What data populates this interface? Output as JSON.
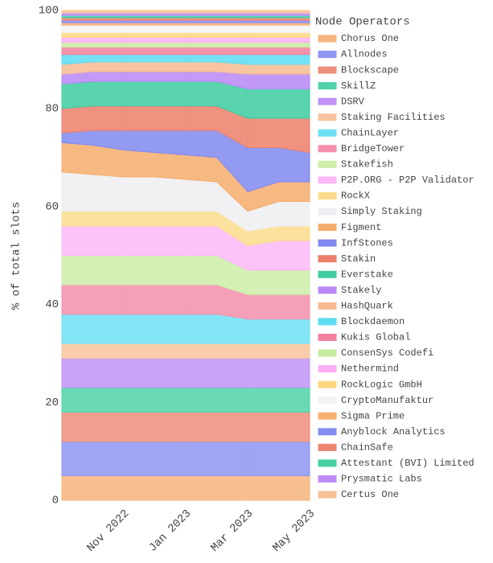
{
  "chart_data": {
    "type": "stacked_area",
    "legend_title": "Node Operators",
    "y_label": "% of total slots",
    "x": [
      "Sep 2022",
      "Oct 2022",
      "Nov 2022",
      "Dec 2022",
      "Jan 2023",
      "Feb 2023",
      "Mar 2023",
      "Apr 2023",
      "May 2023"
    ],
    "xticks": [
      "Nov 2022",
      "Jan 2023",
      "Mar 2023",
      "May 2023"
    ],
    "ylim": [
      0,
      100
    ],
    "yticks": [
      0,
      20,
      40,
      60,
      80,
      100
    ],
    "grid": true,
    "legend": "right",
    "series": [
      {
        "name": "Chorus One",
        "color": "#f7b47c",
        "values": [
          5,
          5,
          5,
          5,
          5,
          5,
          5,
          5,
          5
        ]
      },
      {
        "name": "Allnodes",
        "color": "#8e95f2",
        "values": [
          7,
          7,
          7,
          7,
          7,
          7,
          7,
          7,
          7
        ]
      },
      {
        "name": "Blockscape",
        "color": "#ee8e7c",
        "values": [
          6,
          6,
          6,
          6,
          6,
          6,
          6,
          6,
          6
        ]
      },
      {
        "name": "SkillZ",
        "color": "#4fd2a9",
        "values": [
          5,
          5,
          5,
          5,
          5,
          5,
          5,
          5,
          5
        ]
      },
      {
        "name": "DSRV",
        "color": "#c194f7",
        "values": [
          6,
          6,
          6,
          6,
          6,
          6,
          6,
          6,
          6
        ]
      },
      {
        "name": "Staking Facilities",
        "color": "#f8c49e",
        "values": [
          3,
          3,
          3,
          3,
          3,
          3,
          3,
          3,
          3
        ]
      },
      {
        "name": "ChainLayer",
        "color": "#6fe0f4",
        "values": [
          6,
          6,
          6,
          6,
          6,
          6,
          5,
          5,
          5
        ]
      },
      {
        "name": "BridgeTower",
        "color": "#f58fab",
        "values": [
          6,
          6,
          6,
          6,
          6,
          6,
          5,
          5,
          5
        ]
      },
      {
        "name": "Stakefish",
        "color": "#cdeda8",
        "values": [
          6,
          6,
          6,
          6,
          6,
          6,
          5,
          5,
          5
        ]
      },
      {
        "name": "P2P.ORG - P2P Validator",
        "color": "#fcb8f7",
        "values": [
          6,
          6,
          6,
          6,
          6,
          6,
          5,
          6,
          6
        ]
      },
      {
        "name": "RockX",
        "color": "#fcdc8c",
        "values": [
          3,
          3,
          3,
          3,
          3,
          3,
          3,
          3,
          3
        ]
      },
      {
        "name": "Simply Staking",
        "color": "#eeeff2",
        "values": [
          8,
          7.5,
          7,
          7,
          6.5,
          6,
          4,
          5,
          5
        ]
      },
      {
        "name": "Figment",
        "color": "#f6ad6c",
        "values": [
          6,
          6,
          5.5,
          5,
          5,
          5,
          4,
          4,
          4
        ]
      },
      {
        "name": "InfStones",
        "color": "#8088f0",
        "values": [
          2,
          3,
          4,
          4.5,
          5,
          5.5,
          9,
          7,
          6
        ]
      },
      {
        "name": "Stakin",
        "color": "#ec7f6a",
        "values": [
          5,
          5,
          5,
          5,
          5,
          5,
          6,
          6,
          7
        ]
      },
      {
        "name": "Everstake",
        "color": "#3dcca0",
        "values": [
          5,
          5,
          5,
          5,
          5,
          5,
          6,
          6,
          6
        ]
      },
      {
        "name": "Stakely",
        "color": "#b987f6",
        "values": [
          2,
          2,
          2,
          2,
          2,
          2,
          3,
          3,
          3
        ]
      },
      {
        "name": "HashQuark",
        "color": "#f7bb92",
        "values": [
          2,
          2,
          2,
          2,
          2,
          2,
          2,
          2,
          2
        ]
      },
      {
        "name": "Blockdaemon",
        "color": "#5cdcf2",
        "values": [
          2,
          1.5,
          1.5,
          1.5,
          1.5,
          1.5,
          2,
          2,
          2
        ]
      },
      {
        "name": "Kukis Global",
        "color": "#f3809f",
        "values": [
          1.5,
          1.5,
          1.5,
          1.5,
          1.5,
          1.5,
          1.5,
          1.5,
          1.5
        ]
      },
      {
        "name": "ConsenSys Codefi",
        "color": "#c7eb9f",
        "values": [
          1,
          1,
          1,
          1,
          1,
          1,
          1,
          1,
          1
        ]
      },
      {
        "name": "Nethermind",
        "color": "#fcaff6",
        "values": [
          1,
          1,
          1,
          1,
          1,
          1,
          1,
          1,
          1
        ]
      },
      {
        "name": "RockLogic GmbH",
        "color": "#fcd780",
        "values": [
          1,
          1,
          1,
          1,
          1,
          1,
          1,
          1,
          1
        ]
      },
      {
        "name": "CryptoManufaktur",
        "color": "#f3f3f5",
        "values": [
          1.5,
          1.5,
          1.5,
          1.5,
          1.5,
          1.5,
          1.5,
          1.5,
          1.5
        ]
      },
      {
        "name": "Sigma Prime",
        "color": "#f7b070",
        "values": [
          0.5,
          0.5,
          0.5,
          0.5,
          0.5,
          0.5,
          0.5,
          0.5,
          0.5
        ]
      },
      {
        "name": "Anyblock Analytics",
        "color": "#858df1",
        "values": [
          0.5,
          0.5,
          0.5,
          0.5,
          0.5,
          0.5,
          0.5,
          0.5,
          0.5
        ]
      },
      {
        "name": "ChainSafe",
        "color": "#ed8470",
        "values": [
          0.5,
          0.5,
          0.5,
          0.5,
          0.5,
          0.5,
          0.5,
          0.5,
          0.5
        ]
      },
      {
        "name": "Attestant (BVI) Limited",
        "color": "#44cea4",
        "values": [
          0.5,
          0.5,
          0.5,
          0.5,
          0.5,
          0.5,
          0.5,
          0.5,
          0.5
        ]
      },
      {
        "name": "Prysmatic Labs",
        "color": "#bc8cf6",
        "values": [
          0.5,
          0.5,
          0.5,
          0.5,
          0.5,
          0.5,
          0.5,
          0.5,
          0.5
        ]
      },
      {
        "name": "Certus One",
        "color": "#f8c196",
        "values": [
          0.5,
          0.5,
          0.5,
          0.5,
          0.5,
          0.5,
          0.5,
          0.5,
          0.5
        ]
      }
    ]
  }
}
